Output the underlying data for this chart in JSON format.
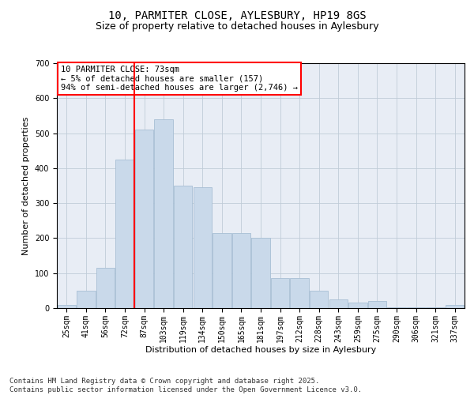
{
  "title_line1": "10, PARMITER CLOSE, AYLESBURY, HP19 8GS",
  "title_line2": "Size of property relative to detached houses in Aylesbury",
  "xlabel": "Distribution of detached houses by size in Aylesbury",
  "ylabel": "Number of detached properties",
  "categories": [
    "25sqm",
    "41sqm",
    "56sqm",
    "72sqm",
    "87sqm",
    "103sqm",
    "119sqm",
    "134sqm",
    "150sqm",
    "165sqm",
    "181sqm",
    "197sqm",
    "212sqm",
    "228sqm",
    "243sqm",
    "259sqm",
    "275sqm",
    "290sqm",
    "306sqm",
    "321sqm",
    "337sqm"
  ],
  "bar_heights": [
    10,
    50,
    115,
    425,
    510,
    540,
    350,
    345,
    215,
    215,
    200,
    85,
    85,
    50,
    25,
    15,
    20,
    2,
    2,
    2,
    10
  ],
  "bar_color": "#c9d9ea",
  "bar_edge_color": "#a8bfd4",
  "vline_x": 3.475,
  "vline_color": "red",
  "annotation_text": "10 PARMITER CLOSE: 73sqm\n← 5% of detached houses are smaller (157)\n94% of semi-detached houses are larger (2,746) →",
  "annotation_box_color": "white",
  "annotation_box_edge_color": "red",
  "ylim": [
    0,
    700
  ],
  "yticks": [
    0,
    100,
    200,
    300,
    400,
    500,
    600,
    700
  ],
  "grid_color": "#c0ccd8",
  "background_color": "#e8edf5",
  "footer_text": "Contains HM Land Registry data © Crown copyright and database right 2025.\nContains public sector information licensed under the Open Government Licence v3.0.",
  "title_fontsize": 10,
  "subtitle_fontsize": 9,
  "axis_label_fontsize": 8,
  "tick_fontsize": 7,
  "annotation_fontsize": 7.5,
  "footer_fontsize": 6.5
}
